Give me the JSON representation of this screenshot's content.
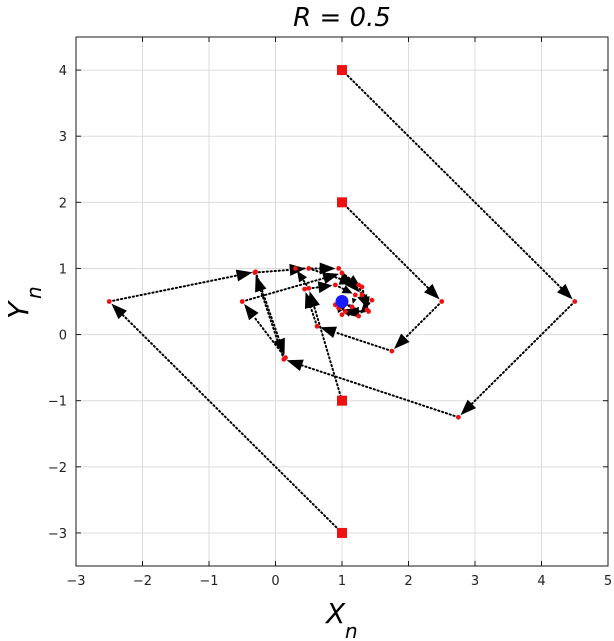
{
  "chart_data": {
    "type": "scatter",
    "title": "R = 0.5",
    "xlabel": "X",
    "xlabel_sub": "n",
    "ylabel": "Y",
    "ylabel_sub": "n",
    "xlim": [
      -3,
      5
    ],
    "ylim": [
      -3.5,
      4.5
    ],
    "xticks": [
      -3,
      -2,
      -1,
      0,
      1,
      2,
      3,
      4,
      5
    ],
    "xtick_labels": [
      "−3",
      "−2",
      "−1",
      "0",
      "1",
      "2",
      "3",
      "4",
      "5"
    ],
    "yticks": [
      -3,
      -2,
      -1,
      0,
      1,
      2,
      3,
      4
    ],
    "ytick_labels": [
      "−3",
      "−2",
      "−1",
      "0",
      "1",
      "2",
      "3",
      "4"
    ],
    "grid": true,
    "colors": {
      "start_marker": "#ee1111",
      "iterate_marker": "#ee1111",
      "fixed_point": "#1a1aff",
      "path": "#000000"
    },
    "fixed_point": {
      "x": 1.0,
      "y": 0.5
    },
    "series": [
      {
        "points": [
          {
            "x": 1.0,
            "y": 4.0
          },
          {
            "x": 4.5,
            "y": 0.5
          },
          {
            "x": 2.75,
            "y": -1.25
          },
          {
            "x": 0.125,
            "y": -0.375
          },
          {
            "x": -0.3125,
            "y": 0.9375
          },
          {
            "x": 0.5,
            "y": 1.0
          },
          {
            "x": 1.25,
            "y": 0.75
          },
          {
            "x": 1.375,
            "y": 0.375
          },
          {
            "x": 1.0,
            "y": 0.3
          },
          {
            "x": 0.9,
            "y": 0.45
          },
          {
            "x": 1.0,
            "y": 0.56
          }
        ]
      },
      {
        "points": [
          {
            "x": 1.0,
            "y": 2.0
          },
          {
            "x": 2.5,
            "y": 0.5
          },
          {
            "x": 1.75,
            "y": -0.25
          },
          {
            "x": 0.625,
            "y": 0.125
          },
          {
            "x": 0.4375,
            "y": 0.6875
          },
          {
            "x": 0.9,
            "y": 0.75
          },
          {
            "x": 1.2,
            "y": 0.6
          },
          {
            "x": 1.15,
            "y": 0.42
          },
          {
            "x": 1.02,
            "y": 0.47
          }
        ]
      },
      {
        "points": [
          {
            "x": 1.0,
            "y": -1.0
          },
          {
            "x": 0.5,
            "y": 0.7
          },
          {
            "x": 0.3,
            "y": 1.0
          },
          {
            "x": 0.95,
            "y": 1.0
          },
          {
            "x": 1.3,
            "y": 0.6
          },
          {
            "x": 1.45,
            "y": 0.52
          },
          {
            "x": 1.25,
            "y": 0.28
          },
          {
            "x": 0.95,
            "y": 0.4
          },
          {
            "x": 1.0,
            "y": 0.52
          }
        ]
      },
      {
        "points": [
          {
            "x": 1.0,
            "y": -3.0
          },
          {
            "x": -2.5,
            "y": 0.5
          },
          {
            "x": -0.3,
            "y": 0.95
          },
          {
            "x": 0.15,
            "y": -0.35
          },
          {
            "x": -0.5,
            "y": 0.5
          },
          {
            "x": 1.0,
            "y": 0.93
          },
          {
            "x": 1.3,
            "y": 0.72
          },
          {
            "x": 1.4,
            "y": 0.35
          },
          {
            "x": 1.05,
            "y": 0.35
          },
          {
            "x": 0.95,
            "y": 0.48
          }
        ]
      }
    ]
  }
}
